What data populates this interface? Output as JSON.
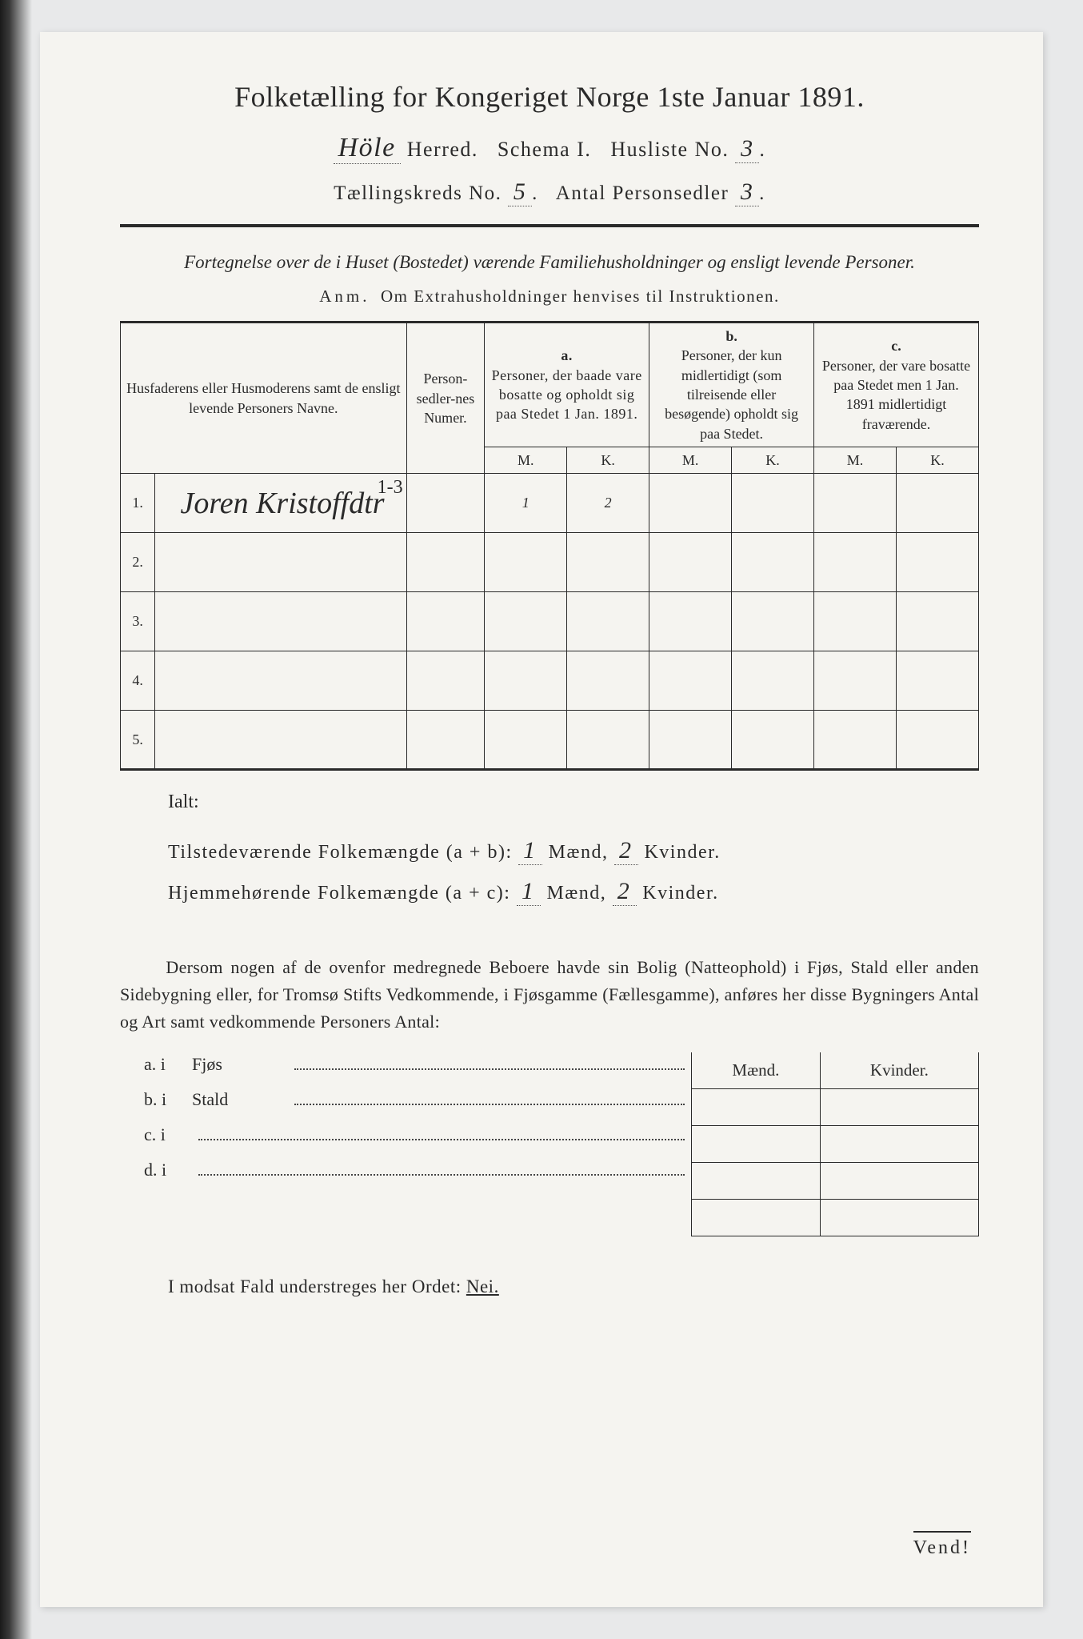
{
  "title": "Folketælling for Kongeriget Norge 1ste Januar 1891.",
  "header": {
    "herred_hw": "Höle",
    "herred_label": "Herred.",
    "schema_label": "Schema I.",
    "husliste_label": "Husliste No.",
    "husliste_hw": "3",
    "kreds_label": "Tællingskreds No.",
    "kreds_hw": "5",
    "antal_label": "Antal Personsedler",
    "antal_hw": "3"
  },
  "subtitle": "Fortegnelse over de i Huset (Bostedet) værende Familiehusholdninger og ensligt levende Personer.",
  "anm_label": "Anm.",
  "anm_text": "Om Extrahusholdninger henvises til Instruktionen.",
  "columns": {
    "name": "Husfaderens eller Husmoderens samt de ensligt levende Personers Navne.",
    "num": "Person-sedler-nes Numer.",
    "a_letter": "a.",
    "a": "Personer, der baade vare bosatte og opholdt sig paa Stedet 1 Jan. 1891.",
    "b_letter": "b.",
    "b": "Personer, der kun midlertidigt (som tilreisende eller besøgende) opholdt sig paa Stedet.",
    "c_letter": "c.",
    "c": "Personer, der vare bosatte paa Stedet men 1 Jan. 1891 midlertidigt fraværende.",
    "m": "M.",
    "k": "K."
  },
  "rows": [
    {
      "n": "1.",
      "name": "Joren Kristoffdtr",
      "num": "1-3",
      "am": "1",
      "ak": "2",
      "bm": "",
      "bk": "",
      "cm": "",
      "ck": ""
    },
    {
      "n": "2.",
      "name": "",
      "num": "",
      "am": "",
      "ak": "",
      "bm": "",
      "bk": "",
      "cm": "",
      "ck": ""
    },
    {
      "n": "3.",
      "name": "",
      "num": "",
      "am": "",
      "ak": "",
      "bm": "",
      "bk": "",
      "cm": "",
      "ck": ""
    },
    {
      "n": "4.",
      "name": "",
      "num": "",
      "am": "",
      "ak": "",
      "bm": "",
      "bk": "",
      "cm": "",
      "ck": ""
    },
    {
      "n": "5.",
      "name": "",
      "num": "",
      "am": "",
      "ak": "",
      "bm": "",
      "bk": "",
      "cm": "",
      "ck": ""
    }
  ],
  "totals": {
    "ialt": "Ialt:",
    "line1_label": "Tilstedeværende Folkemængde (a + b):",
    "line1_m": "1",
    "line1_k": "2",
    "line2_label": "Hjemmehørende Folkemængde (a + c):",
    "line2_m": "1",
    "line2_k": "2",
    "maend": "Mænd,",
    "kvinder": "Kvinder."
  },
  "paragraph": "Dersom nogen af de ovenfor medregnede Beboere havde sin Bolig (Natteophold) i Fjøs, Stald eller anden Sidebygning eller, for Tromsø Stifts Vedkommende, i Fjøsgamme (Fællesgamme), anføres her disse Bygningers Antal og Art samt vedkommende Personers Antal:",
  "subrows": {
    "a": "a.  i",
    "a2": "Fjøs",
    "b": "b.  i",
    "b2": "Stald",
    "c": "c.  i",
    "d": "d.  i"
  },
  "mk_header": {
    "m": "Mænd.",
    "k": "Kvinder."
  },
  "nei_line": "I modsat Fald understreges her Ordet:",
  "nei": "Nei.",
  "vend": "Vend!"
}
